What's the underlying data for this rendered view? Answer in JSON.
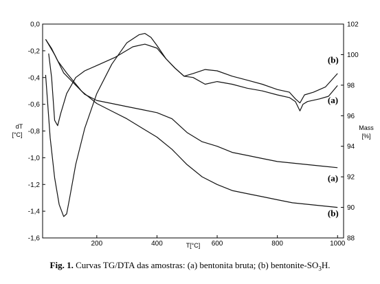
{
  "chart_data": {
    "type": "line",
    "x_axis": {
      "label": "T[°C]",
      "ticks": [
        "200",
        "400",
        "600",
        "800",
        "1000"
      ],
      "range": [
        20,
        1020
      ]
    },
    "y_left": {
      "label_line1": "dT",
      "label_line2": "[°C]",
      "ticks": [
        "0,0",
        "-0,2",
        "-0,4",
        "-0,6",
        "-0,8",
        "-1,0",
        "-1,2",
        "-1,4",
        "-1,6"
      ],
      "range": [
        -1.6,
        0.0
      ]
    },
    "y_right": {
      "label_line1": "Mass",
      "label_line2": "[%]",
      "ticks": [
        "88",
        "90",
        "92",
        "94",
        "96",
        "98",
        "100",
        "102"
      ],
      "range": [
        88,
        102
      ]
    },
    "series": [
      {
        "name": "(a)",
        "kind": "DTA",
        "axis": "left",
        "points": [
          [
            40,
            -0.22
          ],
          [
            50,
            -0.4
          ],
          [
            60,
            -0.72
          ],
          [
            70,
            -0.76
          ],
          [
            80,
            -0.67
          ],
          [
            100,
            -0.52
          ],
          [
            130,
            -0.4
          ],
          [
            160,
            -0.35
          ],
          [
            200,
            -0.31
          ],
          [
            260,
            -0.25
          ],
          [
            320,
            -0.17
          ],
          [
            360,
            -0.15
          ],
          [
            400,
            -0.18
          ],
          [
            430,
            -0.26
          ],
          [
            460,
            -0.33
          ],
          [
            490,
            -0.39
          ],
          [
            520,
            -0.4
          ],
          [
            560,
            -0.45
          ],
          [
            600,
            -0.43
          ],
          [
            650,
            -0.45
          ],
          [
            700,
            -0.48
          ],
          [
            750,
            -0.5
          ],
          [
            800,
            -0.53
          ],
          [
            840,
            -0.55
          ],
          [
            860,
            -0.58
          ],
          [
            875,
            -0.65
          ],
          [
            885,
            -0.6
          ],
          [
            900,
            -0.58
          ],
          [
            940,
            -0.56
          ],
          [
            970,
            -0.54
          ],
          [
            1000,
            -0.46
          ]
        ]
      },
      {
        "name": "(b)",
        "kind": "DTA",
        "axis": "left",
        "points": [
          [
            30,
            -0.38
          ],
          [
            45,
            -0.85
          ],
          [
            60,
            -1.15
          ],
          [
            75,
            -1.35
          ],
          [
            90,
            -1.44
          ],
          [
            100,
            -1.42
          ],
          [
            110,
            -1.3
          ],
          [
            130,
            -1.05
          ],
          [
            160,
            -0.78
          ],
          [
            200,
            -0.52
          ],
          [
            250,
            -0.3
          ],
          [
            300,
            -0.14
          ],
          [
            340,
            -0.08
          ],
          [
            360,
            -0.07
          ],
          [
            380,
            -0.1
          ],
          [
            400,
            -0.16
          ],
          [
            430,
            -0.26
          ],
          [
            460,
            -0.33
          ],
          [
            490,
            -0.39
          ],
          [
            520,
            -0.37
          ],
          [
            560,
            -0.34
          ],
          [
            600,
            -0.35
          ],
          [
            650,
            -0.39
          ],
          [
            700,
            -0.42
          ],
          [
            750,
            -0.45
          ],
          [
            800,
            -0.49
          ],
          [
            840,
            -0.51
          ],
          [
            860,
            -0.56
          ],
          [
            875,
            -0.59
          ],
          [
            890,
            -0.53
          ],
          [
            920,
            -0.51
          ],
          [
            960,
            -0.47
          ],
          [
            1000,
            -0.37
          ]
        ]
      },
      {
        "name": "(a)",
        "kind": "TG",
        "axis": "right",
        "points": [
          [
            30,
            101.0
          ],
          [
            60,
            100.0
          ],
          [
            90,
            98.8
          ],
          [
            120,
            98.2
          ],
          [
            160,
            97.4
          ],
          [
            200,
            97.0
          ],
          [
            250,
            96.8
          ],
          [
            300,
            96.6
          ],
          [
            350,
            96.4
          ],
          [
            400,
            96.2
          ],
          [
            450,
            95.8
          ],
          [
            500,
            94.9
          ],
          [
            550,
            94.3
          ],
          [
            600,
            94.0
          ],
          [
            650,
            93.6
          ],
          [
            700,
            93.4
          ],
          [
            750,
            93.2
          ],
          [
            800,
            93.0
          ],
          [
            850,
            92.9
          ],
          [
            900,
            92.8
          ],
          [
            950,
            92.7
          ],
          [
            1000,
            92.6
          ]
        ]
      },
      {
        "name": "(b)",
        "kind": "TG",
        "axis": "right",
        "points": [
          [
            30,
            101.0
          ],
          [
            50,
            100.4
          ],
          [
            70,
            99.6
          ],
          [
            100,
            98.8
          ],
          [
            150,
            97.6
          ],
          [
            200,
            96.8
          ],
          [
            250,
            96.3
          ],
          [
            300,
            95.8
          ],
          [
            350,
            95.2
          ],
          [
            400,
            94.6
          ],
          [
            450,
            93.8
          ],
          [
            500,
            92.8
          ],
          [
            550,
            92.0
          ],
          [
            600,
            91.5
          ],
          [
            650,
            91.1
          ],
          [
            700,
            90.9
          ],
          [
            750,
            90.7
          ],
          [
            800,
            90.5
          ],
          [
            850,
            90.3
          ],
          [
            900,
            90.2
          ],
          [
            950,
            90.1
          ],
          [
            1000,
            90.0
          ]
        ]
      }
    ],
    "annotations": [
      {
        "text": "(b)",
        "x": 990,
        "axis": "left",
        "y": -0.27
      },
      {
        "text": "(a)",
        "x": 990,
        "axis": "left",
        "y": -0.57
      },
      {
        "text": "(a)",
        "x": 990,
        "axis": "right",
        "y": 91.9
      },
      {
        "text": "(b)",
        "x": 990,
        "axis": "right",
        "y": 89.6
      }
    ]
  },
  "caption": {
    "prefix": "Fig. 1.",
    "text_before_sub": " Curvas TG/DTA das amostras: (a) bentonita bruta; (b) bentonite-SO",
    "sub": "3",
    "text_after_sub": "H."
  }
}
